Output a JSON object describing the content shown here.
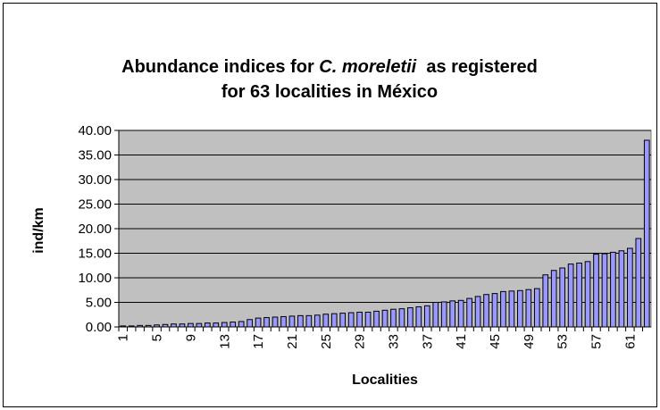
{
  "chart_data": {
    "type": "bar",
    "title": [
      [
        "Abundance indices for ",
        "C. moreletii",
        "  as registered"
      ],
      [
        "for 63 localities in México"
      ]
    ],
    "x_label": "Localities",
    "y_label": "ind/km",
    "categories": [
      "1",
      null,
      null,
      null,
      "5",
      null,
      null,
      null,
      "9",
      null,
      null,
      null,
      "13",
      null,
      null,
      null,
      "17",
      null,
      null,
      null,
      "21",
      null,
      null,
      null,
      "25",
      null,
      null,
      null,
      "29",
      null,
      null,
      null,
      "33",
      null,
      null,
      null,
      "37",
      null,
      null,
      null,
      "41",
      null,
      null,
      null,
      "45",
      null,
      null,
      null,
      "49",
      null,
      null,
      null,
      "53",
      null,
      null,
      null,
      "57",
      null,
      null,
      null,
      "61",
      null,
      null
    ],
    "values": [
      0.2,
      0.2,
      0.3,
      0.3,
      0.4,
      0.5,
      0.6,
      0.6,
      0.7,
      0.7,
      0.8,
      0.8,
      0.9,
      1.0,
      1.1,
      1.5,
      1.8,
      1.9,
      2.0,
      2.1,
      2.2,
      2.3,
      2.3,
      2.4,
      2.6,
      2.7,
      2.8,
      2.9,
      3.0,
      3.0,
      3.2,
      3.4,
      3.6,
      3.7,
      3.9,
      4.1,
      4.3,
      5.0,
      5.1,
      5.3,
      5.4,
      5.8,
      6.2,
      6.6,
      6.8,
      7.2,
      7.3,
      7.4,
      7.6,
      7.8,
      10.6,
      11.5,
      12.0,
      12.8,
      13.0,
      13.3,
      14.8,
      14.9,
      15.2,
      15.5,
      16.0,
      18.0,
      38.0
    ],
    "color": "#9999ff",
    "plot_background": "#c0c0c0",
    "ylim": [
      0,
      40
    ],
    "yticks": [
      {
        "value": 0,
        "label": "0.00"
      },
      {
        "value": 5,
        "label": "5.00"
      },
      {
        "value": 10,
        "label": "10.00"
      },
      {
        "value": 15,
        "label": "15.00"
      },
      {
        "value": 20,
        "label": "20.00"
      },
      {
        "value": 25,
        "label": "25.00"
      },
      {
        "value": 30,
        "label": "30.00"
      },
      {
        "value": 35,
        "label": "35.00"
      },
      {
        "value": 40,
        "label": "40.00"
      }
    ],
    "grid": true
  }
}
